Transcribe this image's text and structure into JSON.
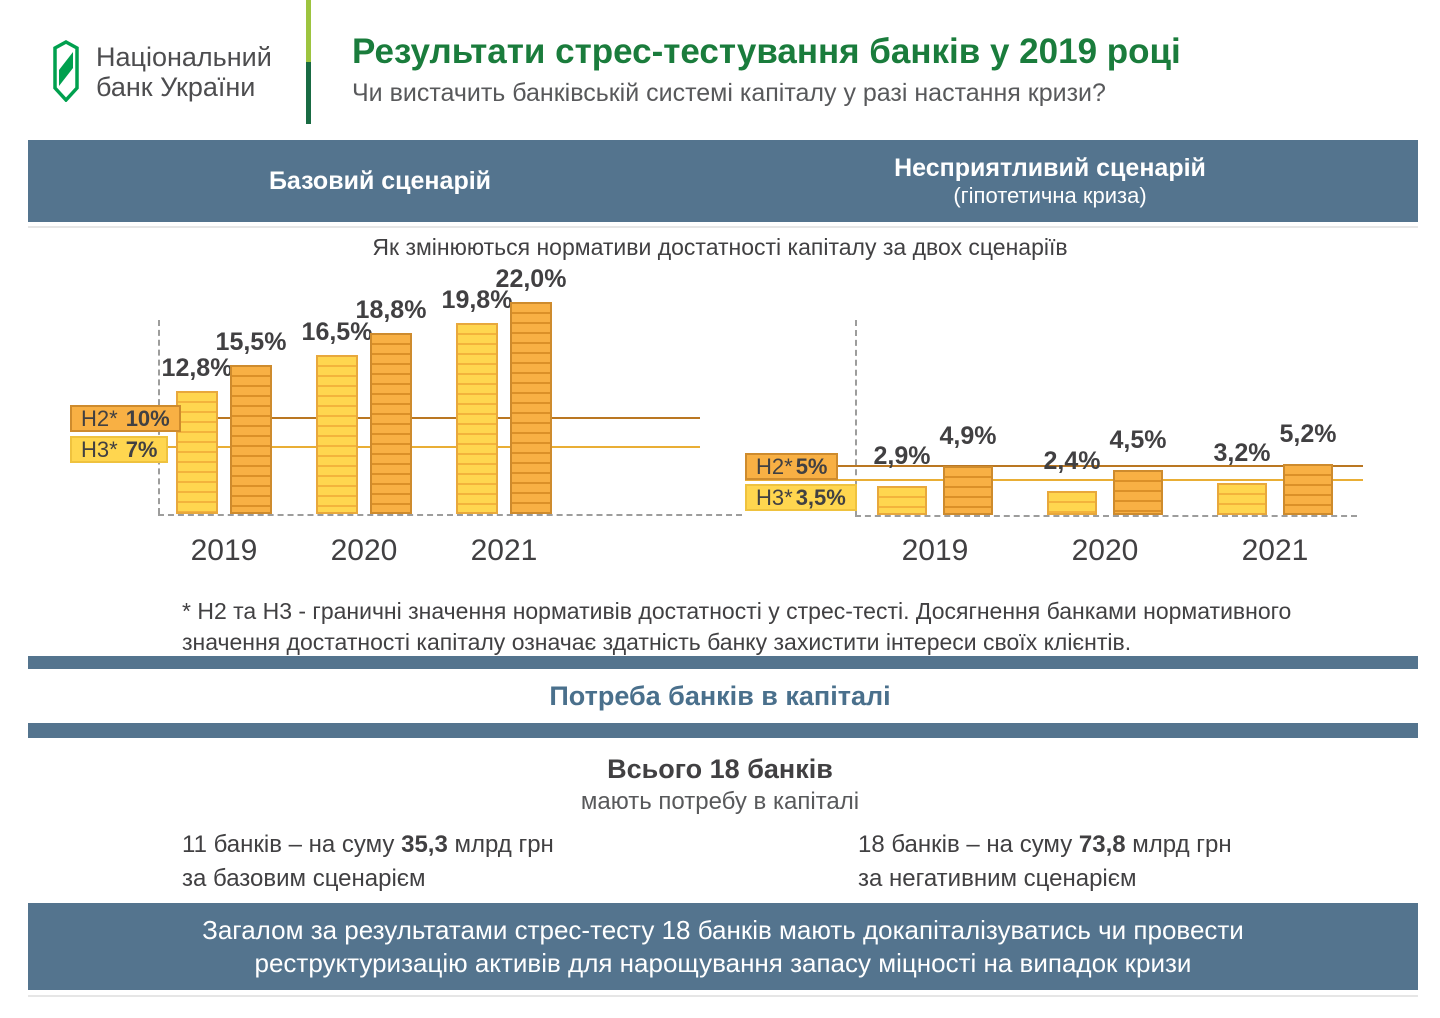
{
  "header": {
    "logo_line1": "Національний",
    "logo_line2": "банк України",
    "title": "Результати стрес-тестування банків у 2019 році",
    "subtitle": "Чи вистачить банківській системі капіталу у разі настання кризи?"
  },
  "scenarios": {
    "base_label": "Базовий сценарій",
    "adverse_label": "Несприятливий сценарій",
    "adverse_sublabel": "(гіпотетична криза)"
  },
  "chart_section": {
    "title": "Як змінюються нормативи достатності капіталу за двох сценаріїв"
  },
  "chart_data": [
    {
      "type": "bar",
      "scenario": "Базовий сценарій",
      "title": "Як змінюються нормативи достатності капіталу за двох сценаріїв",
      "categories": [
        "2019",
        "2020",
        "2021"
      ],
      "series": [
        {
          "name": "Н3",
          "color": "yellow",
          "values": [
            12.8,
            16.5,
            19.8
          ],
          "display": [
            "12,8%",
            "16,5%",
            "19,8%"
          ]
        },
        {
          "name": "Н2",
          "color": "orange",
          "values": [
            15.5,
            18.8,
            22.0
          ],
          "display": [
            "15,5%",
            "18,8%",
            "22,0%"
          ]
        }
      ],
      "thresholds": [
        {
          "label": "Н2*",
          "value": 10,
          "display": "10%",
          "color": "orange"
        },
        {
          "label": "Н3*",
          "value": 7,
          "display": "7%",
          "color": "yellow"
        }
      ],
      "ylim": [
        0,
        23
      ],
      "unit": "%",
      "grid": false,
      "legend_position": "left-threshold-boxes"
    },
    {
      "type": "bar",
      "scenario": "Несприятливий сценарій (гіпотетична криза)",
      "title": "Як змінюються нормативи достатності капіталу за двох сценаріїв",
      "categories": [
        "2019",
        "2020",
        "2021"
      ],
      "series": [
        {
          "name": "Н3",
          "color": "yellow",
          "values": [
            2.9,
            2.4,
            3.2
          ],
          "display": [
            "2,9%",
            "2,4%",
            "3,2%"
          ]
        },
        {
          "name": "Н2",
          "color": "orange",
          "values": [
            4.9,
            4.5,
            5.2
          ],
          "display": [
            "4,9%",
            "4,5%",
            "5,2%"
          ]
        }
      ],
      "thresholds": [
        {
          "label": "Н2*",
          "value": 5,
          "display": "5%",
          "color": "orange"
        },
        {
          "label": "Н3*",
          "value": 3.5,
          "display": "3,5%",
          "color": "yellow"
        }
      ],
      "ylim": [
        0,
        23
      ],
      "unit": "%",
      "grid": false,
      "legend_position": "left-threshold-boxes"
    }
  ],
  "footnote": {
    "line1": "* Н2 та Н3 - граничні значення нормативів достатності у стрес-тесті. Досягнення банками нормативного",
    "line2": "значення достатності капіталу означає здатність банку захистити інтереси своїх клієнтів."
  },
  "capital_need": {
    "section_title": "Потреба банків в капіталі",
    "total_title": "Всього 18 банків",
    "total_subtitle": "мають потребу в капіталі",
    "base": {
      "prefix": "11 банків – на суму",
      "amount": "35,3",
      "suffix": "млрд грн",
      "line2": "за базовим сценарієм"
    },
    "adverse": {
      "prefix": "18 банків – на суму",
      "amount": "73,8",
      "suffix": "млрд грн",
      "line2": "за негативним сценарієм"
    }
  },
  "conclusion": {
    "line1": "Загалом за результатами стрес-тесту 18 банків мають докапіталізуватись чи провести",
    "line2": "реструктуризацію активів для нарощування запасу міцності на випадок кризи"
  },
  "colors": {
    "accent_blue": "#54748E",
    "title_green": "#1A7C3C",
    "emblem_green": "#00A04E",
    "divider_light": "#9DC43F",
    "divider_dark": "#196B43",
    "section_blue_text": "#4A708C",
    "bar_yellow": "#FFD64F",
    "bar_yellow_stripe": "#F3B33C",
    "bar_yellow_border": "#E8A83C",
    "bar_orange": "#F8B044",
    "bar_orange_stripe": "#DB9028",
    "bar_orange_border": "#CE8B2D",
    "line_h2": "#BA7722",
    "line_h3": "#E9AE35",
    "dash_gray": "#9D9D9C",
    "text_dark": "#414042",
    "text_gray": "#58595B"
  }
}
